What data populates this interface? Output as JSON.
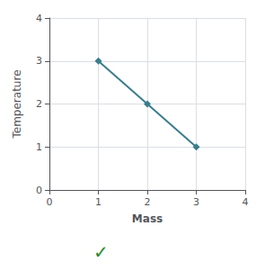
{
  "chart_data": {
    "type": "line",
    "x": [
      1,
      2,
      3
    ],
    "values": [
      3,
      2,
      1
    ],
    "color": "#3a7d8c",
    "marker": "diamond",
    "xlabel": "Mass",
    "ylabel": "Temperature",
    "xlim": [
      0,
      4
    ],
    "ylim": [
      0,
      4
    ],
    "xticks": [
      0,
      1,
      2,
      3,
      4
    ],
    "yticks": [
      0,
      1,
      2,
      3,
      4
    ],
    "grid": true,
    "annotations": [
      {
        "text": "✓",
        "color": "#2e8b2e"
      }
    ]
  }
}
